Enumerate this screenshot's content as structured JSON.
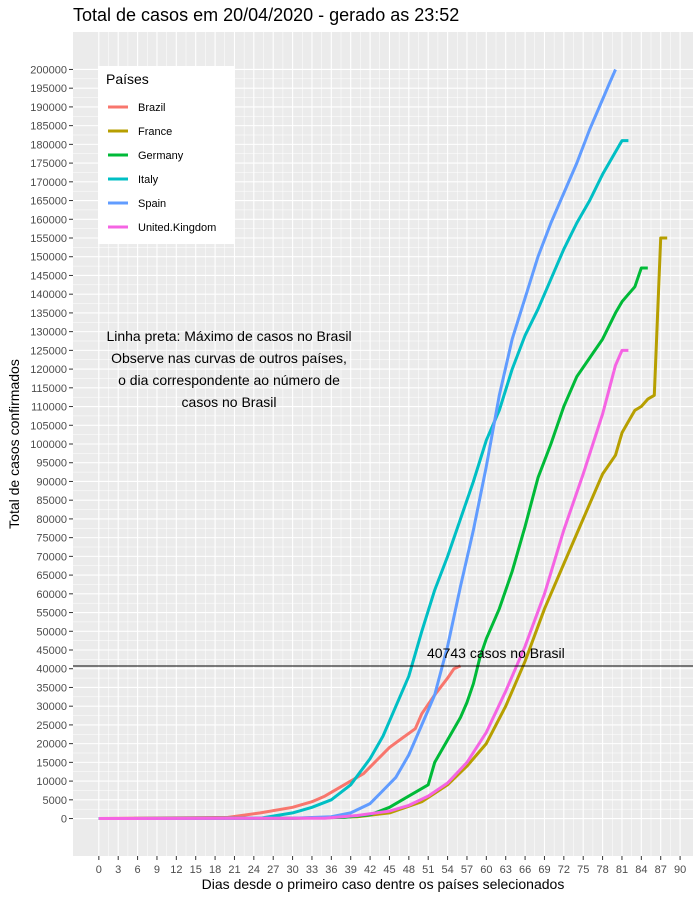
{
  "chart_data": {
    "type": "line",
    "title": "Total de casos em 20/04/2020 - gerado as 23:52",
    "xlabel": "Dias desde o primeiro caso dentre os países selecionados",
    "ylabel": "Total de casos confirmados",
    "xlim": [
      -4,
      92
    ],
    "ylim": [
      -10000,
      210000
    ],
    "x_ticks": [
      0,
      3,
      6,
      9,
      12,
      15,
      18,
      21,
      24,
      27,
      30,
      33,
      36,
      39,
      42,
      45,
      48,
      51,
      54,
      57,
      60,
      63,
      66,
      69,
      72,
      75,
      78,
      81,
      84,
      87,
      90
    ],
    "y_ticks": [
      0,
      5000,
      10000,
      15000,
      20000,
      25000,
      30000,
      35000,
      40000,
      45000,
      50000,
      55000,
      60000,
      65000,
      70000,
      75000,
      80000,
      85000,
      90000,
      95000,
      100000,
      105000,
      110000,
      115000,
      120000,
      125000,
      130000,
      135000,
      140000,
      145000,
      150000,
      155000,
      160000,
      165000,
      170000,
      175000,
      180000,
      185000,
      190000,
      195000,
      200000
    ],
    "grid": true,
    "legend": {
      "title": "Países",
      "position": "top-left"
    },
    "hline": {
      "y": 40743,
      "label": "40743 casos no Brasil"
    },
    "annotation": [
      "Linha preta: Máximo de casos no Brasil",
      "Observe nas curvas de outros países,",
      "o dia correspondente ao número de",
      "casos no Brasil"
    ],
    "series": [
      {
        "name": "Brazil",
        "color": "#F8766D",
        "x": [
          0,
          20,
          25,
          30,
          33,
          35,
          37,
          39,
          41,
          43,
          45,
          47,
          49,
          50,
          52,
          54,
          55,
          56
        ],
        "y": [
          0,
          300,
          1500,
          3000,
          4500,
          6000,
          8000,
          10000,
          12000,
          15500,
          19000,
          21500,
          24000,
          28000,
          33000,
          37500,
          40000,
          40743
        ]
      },
      {
        "name": "France",
        "color": "#B79F00",
        "x": [
          0,
          30,
          40,
          45,
          50,
          54,
          57,
          60,
          63,
          66,
          69,
          72,
          75,
          78,
          80,
          81,
          82,
          83,
          84,
          85,
          86,
          87,
          88
        ],
        "y": [
          0,
          100,
          500,
          1500,
          4500,
          9000,
          14000,
          20000,
          30000,
          42000,
          56000,
          68000,
          80000,
          92000,
          97000,
          103000,
          106000,
          109000,
          110000,
          112000,
          113000,
          155000,
          155000
        ]
      },
      {
        "name": "Germany",
        "color": "#00BA38",
        "x": [
          0,
          30,
          38,
          42,
          45,
          48,
          51,
          52,
          54,
          56,
          57,
          58,
          59,
          60,
          62,
          64,
          66,
          68,
          70,
          72,
          74,
          76,
          78,
          80,
          81,
          82,
          83,
          84,
          85
        ],
        "y": [
          0,
          100,
          300,
          1000,
          3000,
          6000,
          9000,
          15000,
          21000,
          27000,
          31000,
          36000,
          43000,
          48000,
          56000,
          66000,
          78000,
          91000,
          100000,
          110000,
          118000,
          123000,
          128000,
          135000,
          138000,
          140000,
          142000,
          147000,
          147000
        ]
      },
      {
        "name": "Italy",
        "color": "#00BFC4",
        "x": [
          0,
          25,
          30,
          33,
          36,
          39,
          42,
          44,
          46,
          48,
          50,
          52,
          54,
          56,
          58,
          60,
          62,
          64,
          66,
          68,
          70,
          72,
          74,
          76,
          78,
          80,
          81,
          82
        ],
        "y": [
          0,
          100,
          1500,
          3000,
          5000,
          9000,
          16000,
          22000,
          30000,
          38000,
          50000,
          61000,
          70000,
          80000,
          90000,
          101000,
          109000,
          120000,
          129000,
          136000,
          144000,
          152000,
          159000,
          165000,
          172000,
          178000,
          181000,
          181000
        ]
      },
      {
        "name": "Spain",
        "color": "#619CFF",
        "x": [
          0,
          30,
          36,
          39,
          42,
          44,
          46,
          48,
          50,
          52,
          54,
          56,
          58,
          60,
          62,
          64,
          66,
          68,
          70,
          72,
          74,
          76,
          78,
          79,
          80
        ],
        "y": [
          0,
          100,
          500,
          1500,
          4000,
          7500,
          11000,
          17000,
          25000,
          33000,
          46000,
          62000,
          77000,
          94000,
          113000,
          128000,
          139000,
          150000,
          159000,
          167000,
          175000,
          184000,
          192000,
          196000,
          200000
        ]
      },
      {
        "name": "United.Kingdom",
        "color": "#F564E3",
        "x": [
          0,
          35,
          40,
          45,
          48,
          51,
          54,
          57,
          60,
          63,
          66,
          69,
          72,
          75,
          78,
          80,
          81,
          82
        ],
        "y": [
          0,
          100,
          800,
          2000,
          3500,
          6000,
          9500,
          15000,
          23000,
          34000,
          46000,
          60000,
          77000,
          92000,
          108000,
          121000,
          125000,
          125000
        ]
      }
    ]
  }
}
